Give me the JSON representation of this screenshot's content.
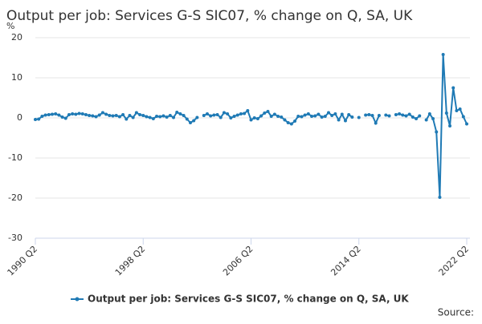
{
  "chart_data": {
    "type": "line",
    "title": "Output per job: Services G-S SIC07, % change on Q, SA, UK",
    "y_unit": "%",
    "source": "Source:",
    "categories": [
      "1990 Q2",
      null,
      null,
      null,
      null,
      null,
      null,
      null,
      null,
      null,
      null,
      null,
      null,
      null,
      null,
      null,
      null,
      null,
      null,
      null,
      null,
      null,
      null,
      null,
      null,
      null,
      null,
      null,
      null,
      null,
      null,
      null,
      "1998 Q2",
      null,
      null,
      null,
      null,
      null,
      null,
      null,
      null,
      null,
      null,
      null,
      null,
      null,
      null,
      null,
      null,
      null,
      null,
      null,
      null,
      null,
      null,
      null,
      null,
      null,
      null,
      null,
      null,
      null,
      null,
      null,
      "2006 Q2",
      null,
      null,
      null,
      null,
      null,
      null,
      null,
      null,
      null,
      null,
      null,
      null,
      null,
      null,
      null,
      null,
      null,
      null,
      null,
      null,
      null,
      null,
      null,
      null,
      null,
      null,
      null,
      null,
      null,
      null,
      null,
      "2014 Q2",
      null,
      null,
      null,
      null,
      null,
      null,
      null,
      null,
      null,
      null,
      null,
      null,
      null,
      null,
      null,
      null,
      null,
      null,
      null,
      null,
      null,
      null,
      null,
      null,
      null,
      null,
      null,
      null,
      null,
      null,
      null,
      "2022 Q2"
    ],
    "series": [
      {
        "name": "Output per job: Services G-S SIC07, % change on Q, SA, UK",
        "color": "#1f7ab5",
        "values": [
          -0.4,
          -0.3,
          0.4,
          0.7,
          0.8,
          0.9,
          1.0,
          0.7,
          0.2,
          -0.1,
          0.8,
          1.0,
          0.9,
          1.1,
          1.0,
          0.8,
          0.6,
          0.5,
          0.3,
          0.7,
          1.3,
          0.9,
          0.6,
          0.5,
          0.6,
          0.3,
          0.8,
          -0.3,
          0.6,
          0.1,
          1.3,
          0.8,
          0.6,
          0.3,
          0.1,
          -0.2,
          0.4,
          0.3,
          0.5,
          0.2,
          0.6,
          0.1,
          1.4,
          1.0,
          0.6,
          -0.3,
          -1.2,
          -0.7,
          0.1,
          null,
          0.6,
          1.0,
          0.5,
          0.7,
          0.8,
          0.1,
          1.3,
          1.0,
          0.0,
          0.4,
          0.7,
          1.0,
          1.1,
          1.8,
          -0.5,
          0.0,
          -0.2,
          0.5,
          1.2,
          1.6,
          0.4,
          0.9,
          0.4,
          0.2,
          -0.5,
          -1.2,
          -1.5,
          -0.8,
          0.4,
          0.3,
          0.7,
          1.0,
          0.4,
          0.5,
          0.9,
          0.2,
          0.4,
          1.3,
          0.6,
          1.0,
          -0.5,
          0.9,
          -0.7,
          0.8,
          0.2,
          null,
          0.1,
          null,
          0.7,
          0.8,
          0.6,
          -1.3,
          0.6,
          null,
          0.7,
          0.5,
          null,
          0.8,
          1.0,
          0.7,
          0.5,
          0.9,
          0.2,
          -0.2,
          0.5,
          null,
          -0.5,
          1.0,
          -0.2,
          -3.5,
          -19.8,
          15.8,
          1.2,
          -2.0,
          7.5,
          1.8,
          2.2,
          0.3,
          -1.5
        ]
      }
    ],
    "ylim": [
      -30,
      20
    ],
    "yticks": [
      -30,
      -20,
      -10,
      0,
      10,
      20
    ],
    "grid": true,
    "legend": "bottom"
  }
}
